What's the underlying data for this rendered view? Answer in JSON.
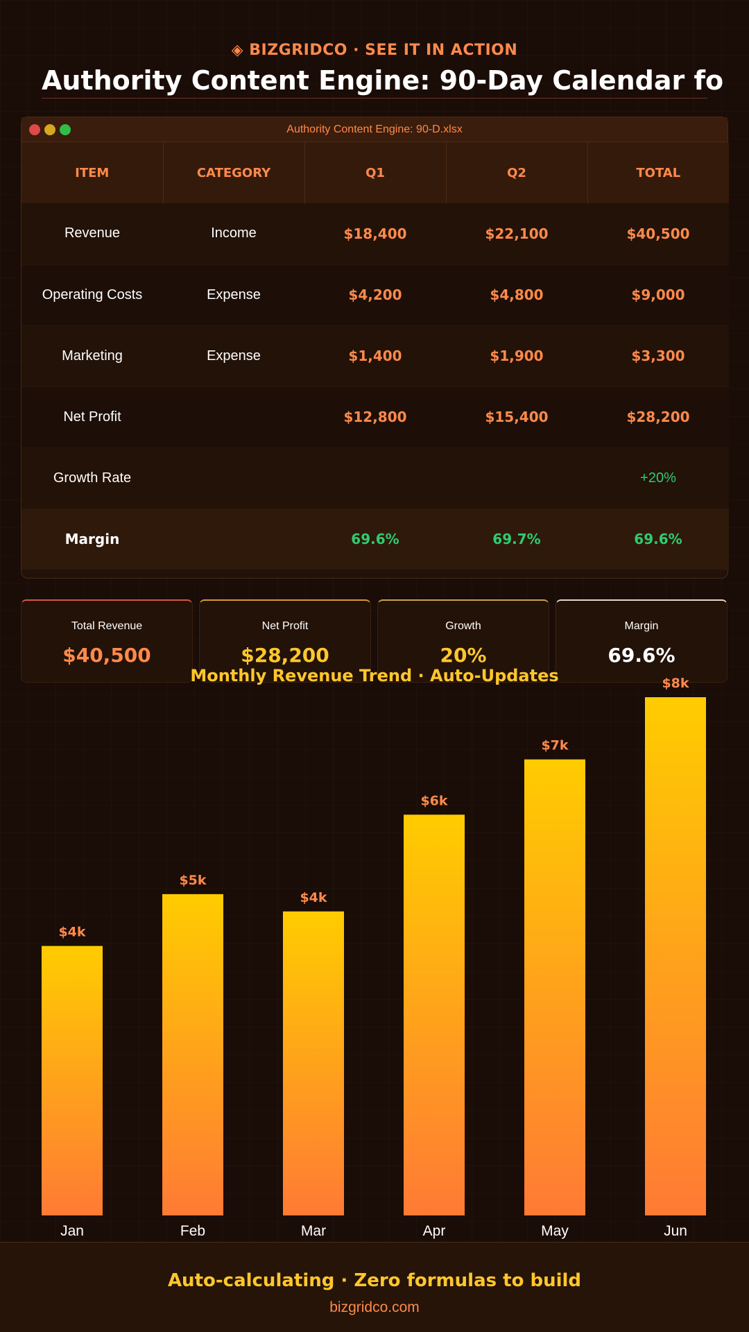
{
  "header": {
    "brand_icon": "diamond-icon",
    "brand": "◈ BIZGRIDCO · SEE IT IN ACTION",
    "title": "Authority Content Engine: 90-Day Calendar fo"
  },
  "window": {
    "filename": "Authority Content Engine: 90-D.xlsx"
  },
  "table": {
    "headers": [
      "ITEM",
      "CATEGORY",
      "Q1",
      "Q2",
      "TOTAL"
    ],
    "rows": [
      {
        "item": "Revenue",
        "category": "Income",
        "q1": "$18,400",
        "q2": "$22,100",
        "total": "$40,500"
      },
      {
        "item": "Operating Costs",
        "category": "Expense",
        "q1": "$4,200",
        "q2": "$4,800",
        "total": "$9,000"
      },
      {
        "item": "Marketing",
        "category": "Expense",
        "q1": "$1,400",
        "q2": "$1,900",
        "total": "$3,300"
      },
      {
        "item": "Net Profit",
        "category": "",
        "q1": "$12,800",
        "q2": "$15,400",
        "total": "$28,200"
      },
      {
        "item": "Growth Rate",
        "category": "",
        "q1": "",
        "q2": "",
        "total": "+20%"
      }
    ],
    "margin": {
      "item": "Margin",
      "category": "",
      "q1": "69.6%",
      "q2": "69.7%",
      "total": "69.6%"
    }
  },
  "kpis": [
    {
      "label": "Total Revenue",
      "value": "$40,500",
      "color": "#ff8a4c",
      "accent": "#d0584a"
    },
    {
      "label": "Net Profit",
      "value": "$28,200",
      "color": "#ffc72c",
      "accent": "#d89a35"
    },
    {
      "label": "Growth",
      "value": "20%",
      "color": "#ffc72c",
      "accent": "#c9a24a"
    },
    {
      "label": "Margin",
      "value": "69.6%",
      "color": "#ffffff",
      "accent": "#e8d6c8"
    }
  ],
  "chart_data": {
    "type": "bar",
    "title": "Monthly Revenue Trend · Auto-Updates",
    "categories": [
      "Jan",
      "Feb",
      "Mar",
      "Apr",
      "May",
      "Jun"
    ],
    "values": [
      3.9,
      4.65,
      4.4,
      5.8,
      6.6,
      7.5
    ],
    "data_labels": [
      "$4k",
      "$5k",
      "$4k",
      "$6k",
      "$7k",
      "$8k"
    ],
    "ylim": [
      0,
      7.5
    ],
    "colors": {
      "top": "#ffcc00",
      "bottom": "#ff7a35",
      "label": "#ff8a4c",
      "tick": "#ffffff"
    }
  },
  "footer": {
    "tagline": "Auto-calculating · Zero formulas to build",
    "url": "bizgridco.com"
  }
}
